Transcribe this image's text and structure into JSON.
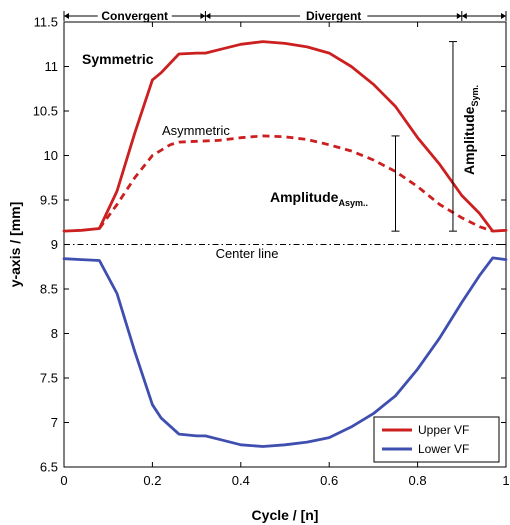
{
  "chart_data": {
    "type": "line",
    "xlabel": "Cycle / [n]",
    "ylabel": "y-axis / [mm]",
    "xlim": [
      0,
      1
    ],
    "ylim": [
      6.5,
      11.5
    ],
    "xticks": [
      "0",
      "0.2",
      "0.4",
      "0.6",
      "0.8",
      "1"
    ],
    "yticks": [
      "6.5",
      "7",
      "7.5",
      "8",
      "8.5",
      "9",
      "9.5",
      "10",
      "10.5",
      "11",
      "11.5"
    ],
    "grid": false,
    "legend_position": "bottom-right",
    "series": [
      {
        "name": "Upper VF",
        "color": "#cc1f1f",
        "style": "solid",
        "x": [
          0,
          0.04,
          0.08,
          0.12,
          0.16,
          0.2,
          0.22,
          0.26,
          0.3,
          0.32,
          0.36,
          0.4,
          0.45,
          0.5,
          0.55,
          0.6,
          0.65,
          0.7,
          0.75,
          0.8,
          0.85,
          0.9,
          0.94,
          0.97,
          1
        ],
        "y": [
          9.15,
          9.16,
          9.18,
          9.6,
          10.25,
          10.85,
          10.93,
          11.14,
          11.15,
          11.15,
          11.2,
          11.25,
          11.28,
          11.26,
          11.22,
          11.15,
          11.0,
          10.8,
          10.55,
          10.2,
          9.9,
          9.55,
          9.35,
          9.15,
          9.16
        ]
      },
      {
        "name": "Lower VF",
        "color": "#3f4fb0",
        "style": "solid",
        "x": [
          0,
          0.04,
          0.08,
          0.12,
          0.16,
          0.2,
          0.22,
          0.26,
          0.3,
          0.32,
          0.36,
          0.4,
          0.45,
          0.5,
          0.55,
          0.6,
          0.65,
          0.7,
          0.75,
          0.8,
          0.85,
          0.9,
          0.94,
          0.97,
          1
        ],
        "y": [
          8.84,
          8.83,
          8.82,
          8.45,
          7.8,
          7.2,
          7.05,
          6.87,
          6.85,
          6.85,
          6.8,
          6.75,
          6.73,
          6.75,
          6.78,
          6.83,
          6.95,
          7.1,
          7.3,
          7.6,
          7.95,
          8.35,
          8.65,
          8.85,
          8.83
        ]
      },
      {
        "name": "",
        "color": "#cc1f1f",
        "style": "dashed",
        "x": [
          0.08,
          0.12,
          0.16,
          0.2,
          0.24,
          0.26,
          0.3,
          0.35,
          0.4,
          0.45,
          0.5,
          0.55,
          0.6,
          0.65,
          0.7,
          0.75,
          0.8,
          0.85,
          0.9,
          0.94,
          0.97
        ],
        "y": [
          9.18,
          9.45,
          9.75,
          10.0,
          10.12,
          10.15,
          10.16,
          10.17,
          10.2,
          10.22,
          10.21,
          10.18,
          10.12,
          10.05,
          9.95,
          9.82,
          9.65,
          9.45,
          9.3,
          9.2,
          9.15
        ]
      },
      {
        "name": "",
        "color": "#000000",
        "style": "dashdot",
        "x": [
          0,
          1
        ],
        "y": [
          9.0,
          9.0
        ]
      }
    ],
    "annotations": {
      "symmetric": "Symmetric",
      "asymmetric": "Asymmetric",
      "amplitude": "Amplitude",
      "asym_sub": "Asym..",
      "sym_sub": "Sym.",
      "center_line": "Center line",
      "convergent": "Convergent",
      "divergent": "Divergent"
    },
    "error_bars": [
      {
        "x": 0.75,
        "y_low": 9.15,
        "y_high": 10.22
      },
      {
        "x": 0.88,
        "y_low": 9.15,
        "y_high": 11.28
      }
    ],
    "phases": [
      {
        "label_key": "convergent",
        "x_start": 0,
        "x_end": 0.32
      },
      {
        "label_key": "divergent",
        "x_start": 0.32,
        "x_end": 0.9
      },
      {
        "label_key": "",
        "x_start": 0.9,
        "x_end": 1
      }
    ]
  }
}
